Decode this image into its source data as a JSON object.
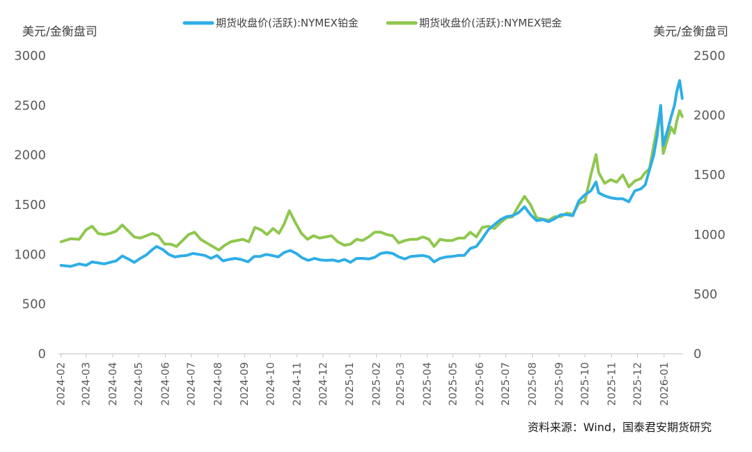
{
  "source": "资料来源：Wind，国泰君安期货研究",
  "chart_data": {
    "type": "line",
    "title": "",
    "left_unit": "美元/金衡盘司",
    "right_unit": "美元/金衡盘司",
    "left_ylim": [
      0,
      3000
    ],
    "left_yticks": [
      "0",
      "500",
      "1000",
      "1500",
      "2000",
      "2500",
      "3000"
    ],
    "right_ylim": [
      0,
      2500
    ],
    "right_yticks": [
      "0",
      "500",
      "1000",
      "1500",
      "2000",
      "2500"
    ],
    "x_range": [
      "2024-01-29",
      "2026-01-23"
    ],
    "x_tick_labels": [
      "2024-02",
      "2024-03",
      "2024-04",
      "2024-05",
      "2024-06",
      "2024-07",
      "2024-08",
      "2024-09",
      "2024-10",
      "2024-11",
      "2024-12",
      "2025-01",
      "2025-02",
      "2025-03",
      "2025-04",
      "2025-05",
      "2025-06",
      "2025-07",
      "2025-08",
      "2025-09",
      "2025-10",
      "2025-11",
      "2025-12",
      "2026-01"
    ],
    "grid": false,
    "legend_position": "top",
    "series": [
      {
        "name": "期货收盘价(活跃):NYMEX铂金",
        "axis": "left",
        "color": "#2eaee7",
        "points": [
          [
            "2024-02-01",
            890
          ],
          [
            "2024-02-12",
            880
          ],
          [
            "2024-02-22",
            905
          ],
          [
            "2024-03-01",
            890
          ],
          [
            "2024-03-08",
            925
          ],
          [
            "2024-03-15",
            915
          ],
          [
            "2024-03-22",
            905
          ],
          [
            "2024-03-29",
            920
          ],
          [
            "2024-04-05",
            935
          ],
          [
            "2024-04-12",
            985
          ],
          [
            "2024-04-19",
            955
          ],
          [
            "2024-04-26",
            920
          ],
          [
            "2024-05-03",
            960
          ],
          [
            "2024-05-10",
            995
          ],
          [
            "2024-05-17",
            1050
          ],
          [
            "2024-05-22",
            1080
          ],
          [
            "2024-05-29",
            1050
          ],
          [
            "2024-06-05",
            1000
          ],
          [
            "2024-06-12",
            975
          ],
          [
            "2024-06-19",
            985
          ],
          [
            "2024-06-26",
            990
          ],
          [
            "2024-07-03",
            1010
          ],
          [
            "2024-07-10",
            1000
          ],
          [
            "2024-07-17",
            990
          ],
          [
            "2024-07-24",
            960
          ],
          [
            "2024-07-31",
            990
          ],
          [
            "2024-08-07",
            935
          ],
          [
            "2024-08-14",
            950
          ],
          [
            "2024-08-21",
            960
          ],
          [
            "2024-08-28",
            950
          ],
          [
            "2024-09-05",
            925
          ],
          [
            "2024-09-12",
            980
          ],
          [
            "2024-09-19",
            980
          ],
          [
            "2024-09-26",
            1000
          ],
          [
            "2024-10-03",
            990
          ],
          [
            "2024-10-10",
            975
          ],
          [
            "2024-10-17",
            1020
          ],
          [
            "2024-10-24",
            1040
          ],
          [
            "2024-10-31",
            1010
          ],
          [
            "2024-11-07",
            965
          ],
          [
            "2024-11-14",
            940
          ],
          [
            "2024-11-21",
            960
          ],
          [
            "2024-11-28",
            945
          ],
          [
            "2024-12-05",
            940
          ],
          [
            "2024-12-12",
            945
          ],
          [
            "2024-12-19",
            930
          ],
          [
            "2024-12-26",
            950
          ],
          [
            "2025-01-02",
            920
          ],
          [
            "2025-01-09",
            960
          ],
          [
            "2025-01-16",
            960
          ],
          [
            "2025-01-23",
            955
          ],
          [
            "2025-01-30",
            970
          ],
          [
            "2025-02-06",
            1010
          ],
          [
            "2025-02-13",
            1020
          ],
          [
            "2025-02-20",
            1010
          ],
          [
            "2025-02-27",
            975
          ],
          [
            "2025-03-06",
            955
          ],
          [
            "2025-03-13",
            980
          ],
          [
            "2025-03-20",
            985
          ],
          [
            "2025-03-27",
            990
          ],
          [
            "2025-04-03",
            975
          ],
          [
            "2025-04-09",
            925
          ],
          [
            "2025-04-16",
            960
          ],
          [
            "2025-04-23",
            975
          ],
          [
            "2025-04-30",
            980
          ],
          [
            "2025-05-07",
            990
          ],
          [
            "2025-05-14",
            990
          ],
          [
            "2025-05-21",
            1060
          ],
          [
            "2025-05-28",
            1080
          ],
          [
            "2025-06-04",
            1160
          ],
          [
            "2025-06-11",
            1250
          ],
          [
            "2025-06-18",
            1300
          ],
          [
            "2025-06-25",
            1350
          ],
          [
            "2025-07-02",
            1380
          ],
          [
            "2025-07-09",
            1390
          ],
          [
            "2025-07-16",
            1420
          ],
          [
            "2025-07-23",
            1480
          ],
          [
            "2025-07-30",
            1400
          ],
          [
            "2025-08-06",
            1340
          ],
          [
            "2025-08-13",
            1350
          ],
          [
            "2025-08-20",
            1330
          ],
          [
            "2025-08-27",
            1360
          ],
          [
            "2025-09-03",
            1400
          ],
          [
            "2025-09-10",
            1400
          ],
          [
            "2025-09-17",
            1390
          ],
          [
            "2025-09-24",
            1540
          ],
          [
            "2025-10-01",
            1600
          ],
          [
            "2025-10-08",
            1640
          ],
          [
            "2025-10-14",
            1730
          ],
          [
            "2025-10-17",
            1620
          ],
          [
            "2025-10-24",
            1590
          ],
          [
            "2025-10-31",
            1570
          ],
          [
            "2025-11-07",
            1560
          ],
          [
            "2025-11-14",
            1560
          ],
          [
            "2025-11-21",
            1530
          ],
          [
            "2025-11-28",
            1640
          ],
          [
            "2025-12-05",
            1660
          ],
          [
            "2025-12-10",
            1700
          ],
          [
            "2025-12-15",
            1850
          ],
          [
            "2025-12-20",
            2000
          ],
          [
            "2025-12-24",
            2200
          ],
          [
            "2025-12-28",
            2500
          ],
          [
            "2025-12-31",
            2100
          ],
          [
            "2026-01-05",
            2250
          ],
          [
            "2026-01-09",
            2380
          ],
          [
            "2026-01-13",
            2500
          ],
          [
            "2026-01-16",
            2650
          ],
          [
            "2026-01-19",
            2750
          ],
          [
            "2026-01-22",
            2570
          ]
        ]
      },
      {
        "name": "期货收盘价(活跃):NYMEX钯金",
        "axis": "right",
        "color": "#8fc74e",
        "points": [
          [
            "2024-02-01",
            940
          ],
          [
            "2024-02-12",
            965
          ],
          [
            "2024-02-22",
            960
          ],
          [
            "2024-03-01",
            1040
          ],
          [
            "2024-03-08",
            1070
          ],
          [
            "2024-03-15",
            1010
          ],
          [
            "2024-03-22",
            1000
          ],
          [
            "2024-03-29",
            1010
          ],
          [
            "2024-04-05",
            1030
          ],
          [
            "2024-04-12",
            1080
          ],
          [
            "2024-04-19",
            1030
          ],
          [
            "2024-04-26",
            980
          ],
          [
            "2024-05-03",
            970
          ],
          [
            "2024-05-10",
            990
          ],
          [
            "2024-05-17",
            1010
          ],
          [
            "2024-05-24",
            990
          ],
          [
            "2024-05-31",
            920
          ],
          [
            "2024-06-07",
            920
          ],
          [
            "2024-06-14",
            900
          ],
          [
            "2024-06-21",
            950
          ],
          [
            "2024-06-28",
            1000
          ],
          [
            "2024-07-05",
            1020
          ],
          [
            "2024-07-12",
            960
          ],
          [
            "2024-07-19",
            930
          ],
          [
            "2024-07-26",
            900
          ],
          [
            "2024-08-02",
            870
          ],
          [
            "2024-08-09",
            910
          ],
          [
            "2024-08-16",
            940
          ],
          [
            "2024-08-23",
            950
          ],
          [
            "2024-08-30",
            960
          ],
          [
            "2024-09-06",
            940
          ],
          [
            "2024-09-13",
            1060
          ],
          [
            "2024-09-20",
            1040
          ],
          [
            "2024-09-27",
            1000
          ],
          [
            "2024-10-04",
            1050
          ],
          [
            "2024-10-11",
            1010
          ],
          [
            "2024-10-17",
            1090
          ],
          [
            "2024-10-23",
            1200
          ],
          [
            "2024-10-30",
            1100
          ],
          [
            "2024-11-06",
            1010
          ],
          [
            "2024-11-13",
            960
          ],
          [
            "2024-11-20",
            990
          ],
          [
            "2024-11-27",
            970
          ],
          [
            "2024-12-04",
            980
          ],
          [
            "2024-12-11",
            990
          ],
          [
            "2024-12-18",
            940
          ],
          [
            "2024-12-26",
            910
          ],
          [
            "2025-01-02",
            920
          ],
          [
            "2025-01-09",
            960
          ],
          [
            "2025-01-16",
            950
          ],
          [
            "2025-01-23",
            980
          ],
          [
            "2025-01-30",
            1020
          ],
          [
            "2025-02-06",
            1020
          ],
          [
            "2025-02-13",
            1000
          ],
          [
            "2025-02-20",
            990
          ],
          [
            "2025-02-27",
            930
          ],
          [
            "2025-03-06",
            950
          ],
          [
            "2025-03-13",
            960
          ],
          [
            "2025-03-20",
            960
          ],
          [
            "2025-03-27",
            980
          ],
          [
            "2025-04-03",
            960
          ],
          [
            "2025-04-09",
            900
          ],
          [
            "2025-04-16",
            960
          ],
          [
            "2025-04-23",
            950
          ],
          [
            "2025-04-30",
            950
          ],
          [
            "2025-05-07",
            970
          ],
          [
            "2025-05-14",
            970
          ],
          [
            "2025-05-21",
            1020
          ],
          [
            "2025-05-28",
            980
          ],
          [
            "2025-06-04",
            1060
          ],
          [
            "2025-06-11",
            1070
          ],
          [
            "2025-06-18",
            1050
          ],
          [
            "2025-06-25",
            1100
          ],
          [
            "2025-07-02",
            1140
          ],
          [
            "2025-07-09",
            1150
          ],
          [
            "2025-07-16",
            1240
          ],
          [
            "2025-07-23",
            1320
          ],
          [
            "2025-07-30",
            1250
          ],
          [
            "2025-08-06",
            1140
          ],
          [
            "2025-08-13",
            1130
          ],
          [
            "2025-08-20",
            1120
          ],
          [
            "2025-08-27",
            1150
          ],
          [
            "2025-09-03",
            1150
          ],
          [
            "2025-09-10",
            1180
          ],
          [
            "2025-09-17",
            1170
          ],
          [
            "2025-09-24",
            1260
          ],
          [
            "2025-10-01",
            1280
          ],
          [
            "2025-10-08",
            1500
          ],
          [
            "2025-10-14",
            1670
          ],
          [
            "2025-10-17",
            1520
          ],
          [
            "2025-10-24",
            1430
          ],
          [
            "2025-10-31",
            1460
          ],
          [
            "2025-11-07",
            1440
          ],
          [
            "2025-11-14",
            1500
          ],
          [
            "2025-11-21",
            1400
          ],
          [
            "2025-11-28",
            1450
          ],
          [
            "2025-12-05",
            1470
          ],
          [
            "2025-12-10",
            1520
          ],
          [
            "2025-12-15",
            1550
          ],
          [
            "2025-12-20",
            1750
          ],
          [
            "2025-12-24",
            1900
          ],
          [
            "2025-12-28",
            2060
          ],
          [
            "2025-12-31",
            1680
          ],
          [
            "2026-01-05",
            1800
          ],
          [
            "2026-01-09",
            1900
          ],
          [
            "2026-01-13",
            1850
          ],
          [
            "2026-01-16",
            1960
          ],
          [
            "2026-01-19",
            2040
          ],
          [
            "2026-01-22",
            1990
          ]
        ]
      }
    ]
  }
}
